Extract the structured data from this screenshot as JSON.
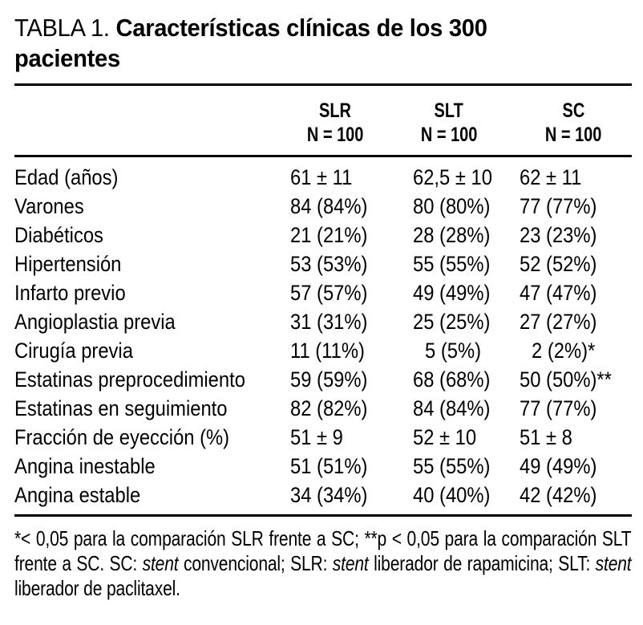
{
  "colors": {
    "text": "#000000",
    "background": "#ffffff",
    "rule": "#000000"
  },
  "title": {
    "prefix": "TABLA 1.",
    "rest": "Características clínicas de los 300",
    "rest2": "pacientes"
  },
  "table": {
    "columns": [
      {
        "name": "SLR",
        "n": "N = 100"
      },
      {
        "name": "SLT",
        "n": "N = 100"
      },
      {
        "name": "SC",
        "n": "N = 100"
      }
    ],
    "rows": [
      {
        "label": "Edad (años)",
        "values": [
          "61 ± 11",
          "62,5 ± 10",
          "62 ± 11"
        ]
      },
      {
        "label": "Varones",
        "values": [
          "84 (84%)",
          "80 (80%)",
          "77 (77%)"
        ]
      },
      {
        "label": "Diabéticos",
        "values": [
          "21 (21%)",
          "28 (28%)",
          "23 (23%)"
        ]
      },
      {
        "label": "Hipertensión",
        "values": [
          "53 (53%)",
          "55 (55%)",
          "52 (52%)"
        ]
      },
      {
        "label": "Infarto previo",
        "values": [
          "57 (57%)",
          "49 (49%)",
          "47 (47%)"
        ]
      },
      {
        "label": "Angioplastia previa",
        "values": [
          "31 (31%)",
          "25 (25%)",
          "27 (27%)"
        ]
      },
      {
        "label": "Cirugía previa",
        "values": [
          "11 (11%)",
          "5 (5%)",
          "2 (2%)*"
        ]
      },
      {
        "label": "Estatinas preprocedimiento",
        "values": [
          "59 (59%)",
          "68 (68%)",
          "50 (50%)**"
        ]
      },
      {
        "label": "Estatinas en seguimiento",
        "values": [
          "82 (82%)",
          "84 (84%)",
          "77 (77%)"
        ]
      },
      {
        "label": "Fracción de eyección (%)",
        "values": [
          "51 ± 9",
          "52 ± 10",
          "51 ± 8"
        ]
      },
      {
        "label": "Angina inestable",
        "values": [
          "51 (51%)",
          "55 (55%)",
          "49 (49%)"
        ]
      },
      {
        "label": "Angina estable",
        "values": [
          "34 (34%)",
          "40 (40%)",
          "42 (42%)"
        ]
      }
    ]
  },
  "footnote": {
    "segments": [
      "*< 0,05 para la comparación SLR frente a SC; **p < 0,05 para la comparación SLT frente a SC. SC: ",
      "stent",
      " convencional; SLR: ",
      "stent",
      " liberador de rapamicina; SLT: ",
      "stent",
      " liberador de paclitaxel."
    ]
  }
}
